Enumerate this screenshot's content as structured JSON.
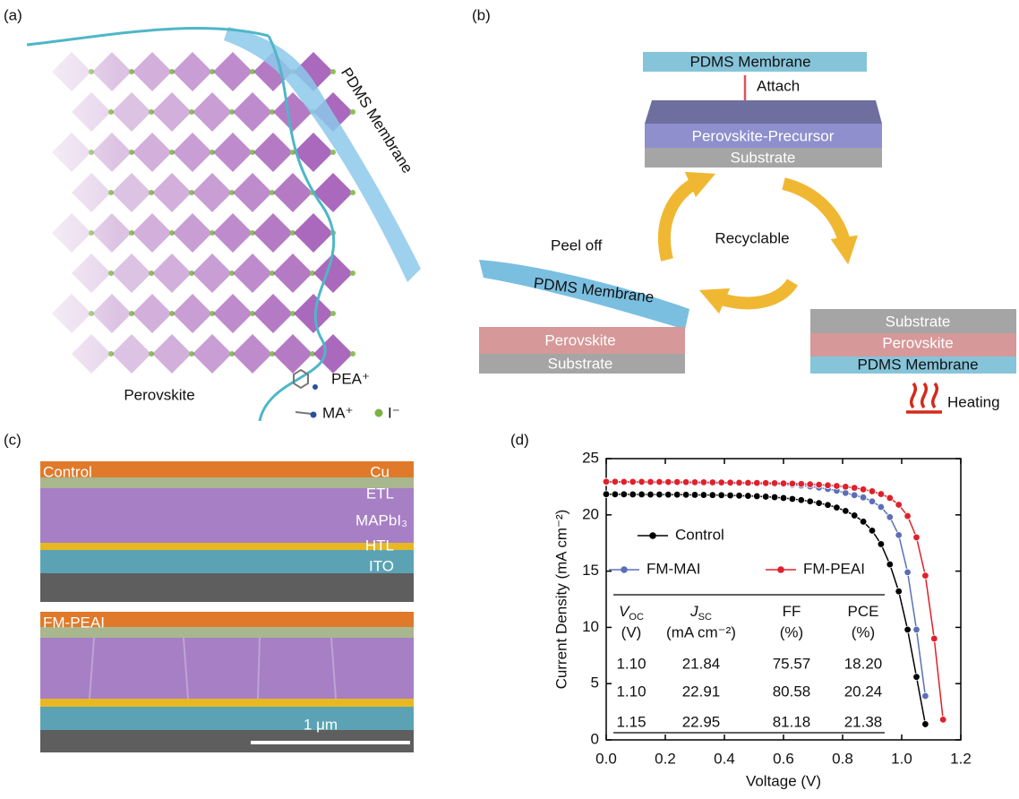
{
  "panel_a": {
    "label": "(a)",
    "membrane": "PDMS Membrane",
    "perovskite": "Perovskite",
    "legend": [
      "PEA⁺",
      "MA⁺",
      "I⁻"
    ]
  },
  "panel_b": {
    "label": "(b)",
    "top_stack": [
      "PDMS Membrane",
      "Perovskite-Precursor",
      "Substrate"
    ],
    "attach": "Attach",
    "cycle": "Recyclable",
    "peel": "Peel off",
    "left_stack": [
      "PDMS Membrane",
      "Perovskite",
      "Substrate"
    ],
    "right_stack": [
      "Substrate",
      "Perovskite",
      "PDMS Membrane"
    ],
    "heating": "Heating"
  },
  "panel_c": {
    "label": "(c)",
    "top_tag": "Control",
    "layers": [
      "Cu",
      "ETL",
      "MAPbI₃",
      "HTL",
      "ITO"
    ],
    "bottom_tag": "FM-PEAI",
    "scale_bar": "1 μm"
  },
  "chart_data": {
    "type": "line",
    "label": "(d)",
    "x_label": "Voltage (V)",
    "y_label": "Current Density (mA cm⁻²)",
    "xlim": [
      0,
      1.2
    ],
    "ylim": [
      0,
      25
    ],
    "xticks": [
      {
        "value": 0,
        "label": "0.0"
      },
      0.2,
      0.4,
      0.6,
      0.8,
      {
        "value": 1,
        "label": "1.0"
      },
      1.2
    ],
    "yticks": [
      0,
      5,
      10,
      15,
      20,
      25
    ],
    "x": [
      0,
      0.03,
      0.06,
      0.09,
      0.12,
      0.15,
      0.18,
      0.21,
      0.24,
      0.27,
      0.3,
      0.33,
      0.36,
      0.39,
      0.42,
      0.45,
      0.48,
      0.51,
      0.54,
      0.57,
      0.6,
      0.63,
      0.66,
      0.69,
      0.72,
      0.75,
      0.78,
      0.81,
      0.84,
      0.87,
      0.9,
      0.93,
      0.96,
      0.99,
      1.02,
      1.05,
      1.08,
      1.11,
      1.14
    ],
    "series": [
      {
        "name": "Control",
        "color": "#000000",
        "values": [
          21.84,
          21.83,
          21.83,
          21.82,
          21.82,
          21.81,
          21.81,
          21.8,
          21.8,
          21.79,
          21.78,
          21.77,
          21.76,
          21.75,
          21.73,
          21.71,
          21.69,
          21.66,
          21.62,
          21.57,
          21.5,
          21.42,
          21.32,
          21.2,
          21.05,
          20.88,
          20.65,
          20.35,
          19.95,
          19.4,
          18.6,
          17.4,
          15.6,
          13.2,
          9.8,
          5.6,
          1.4,
          null,
          null
        ]
      },
      {
        "name": "FM-MAI",
        "color": "#5b6fb8",
        "values": [
          22.91,
          22.91,
          22.9,
          22.9,
          22.89,
          22.89,
          22.88,
          22.88,
          22.87,
          22.86,
          22.85,
          22.84,
          22.83,
          22.82,
          22.81,
          22.8,
          22.79,
          22.77,
          22.76,
          22.74,
          22.72,
          22.67,
          22.6,
          22.52,
          22.42,
          22.3,
          22.15,
          21.95,
          21.75,
          21.55,
          21.2,
          20.7,
          19.8,
          18.2,
          14.9,
          9.8,
          3.9,
          null,
          null
        ]
      },
      {
        "name": "FM-PEAI",
        "color": "#e0202a",
        "values": [
          22.95,
          22.95,
          22.94,
          22.94,
          22.94,
          22.93,
          22.93,
          22.92,
          22.92,
          22.91,
          22.9,
          22.9,
          22.89,
          22.88,
          22.87,
          22.86,
          22.85,
          22.84,
          22.83,
          22.82,
          22.8,
          22.78,
          22.75,
          22.72,
          22.68,
          22.63,
          22.57,
          22.5,
          22.4,
          22.27,
          22.1,
          21.85,
          21.5,
          20.9,
          19.9,
          18.0,
          14.6,
          9.0,
          1.8
        ]
      }
    ],
    "table": {
      "header": [
        {
          "symbol": "V",
          "sub": "OC",
          "unit": "(V)"
        },
        {
          "symbol": "J",
          "sub": "SC",
          "unit": "(mA cm⁻²)"
        },
        {
          "symbol": "FF",
          "unit": "(%)"
        },
        {
          "symbol": "PCE",
          "unit": "(%)"
        }
      ],
      "rows": [
        [
          "1.10",
          "21.84",
          "75.57",
          "18.20"
        ],
        [
          "1.10",
          "22.91",
          "80.58",
          "20.24"
        ],
        [
          "1.15",
          "22.95",
          "81.18",
          "21.38"
        ]
      ]
    }
  }
}
